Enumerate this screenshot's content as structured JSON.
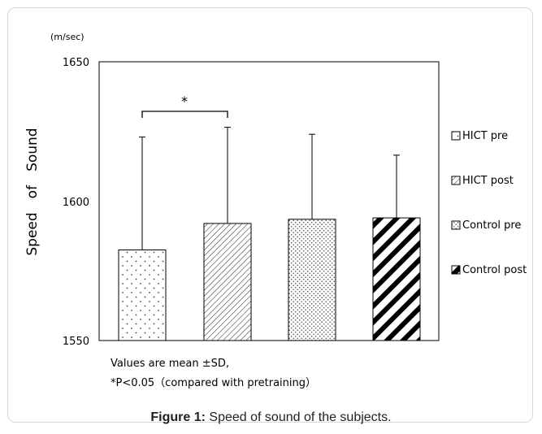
{
  "chart_data": {
    "type": "bar",
    "unit_label": "(m/sec)",
    "ylabel": "Speed　of　Sound",
    "xlabel": "",
    "ylim": [
      1550,
      1650
    ],
    "yticks": [
      "1650",
      "1600",
      "1550"
    ],
    "categories": [
      "HICT pre",
      "HICT post",
      "Control pre",
      "Control post"
    ],
    "values": [
      1582.5,
      1592,
      1593.5,
      1594
    ],
    "sd": [
      40.5,
      34.5,
      30.5,
      22.5
    ],
    "patterns": [
      "sparse-dots",
      "thin-diagonal",
      "dense-dots",
      "thick-diagonal"
    ],
    "legend": [
      "HICT pre",
      "HICT post",
      "Control pre",
      "Control post"
    ],
    "legend_position": "right",
    "significance": {
      "from": 0,
      "to": 1,
      "label": "*"
    },
    "grid": false
  },
  "notes": {
    "line1": "Values are mean ±SD,",
    "line2": "*P<0.05（compared with pretraining）"
  },
  "caption": {
    "label": "Figure 1:",
    "text": " Speed of sound of the subjects."
  }
}
